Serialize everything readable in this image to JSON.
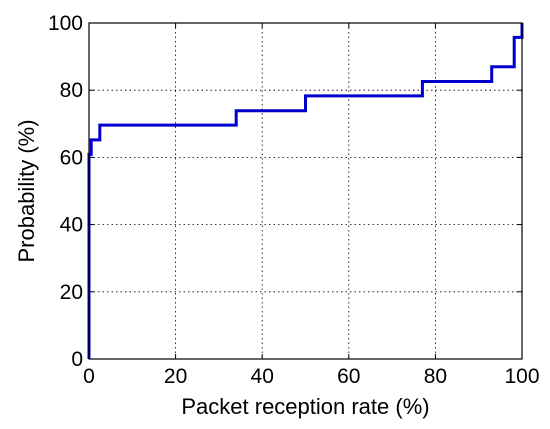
{
  "chart_data": {
    "type": "line",
    "step": true,
    "xlabel": "Packet reception rate (%)",
    "ylabel": "Probability (%)",
    "xlim": [
      0,
      100
    ],
    "ylim": [
      0,
      100
    ],
    "xticks": [
      0,
      20,
      40,
      60,
      80,
      100
    ],
    "yticks": [
      0,
      20,
      40,
      60,
      80,
      100
    ],
    "grid": true,
    "series": [
      {
        "color": "#0000cc",
        "x": [
          0,
          0,
          0.5,
          0.5,
          2.5,
          2.5,
          34,
          34,
          50,
          50,
          77,
          77,
          93,
          93,
          98.2,
          98.2,
          100,
          100
        ],
        "y": [
          0,
          60.9,
          60.9,
          65.2,
          65.2,
          69.6,
          69.6,
          73.9,
          73.9,
          78.3,
          78.3,
          82.6,
          82.6,
          87.0,
          87.0,
          95.7,
          95.7,
          100
        ]
      }
    ]
  }
}
